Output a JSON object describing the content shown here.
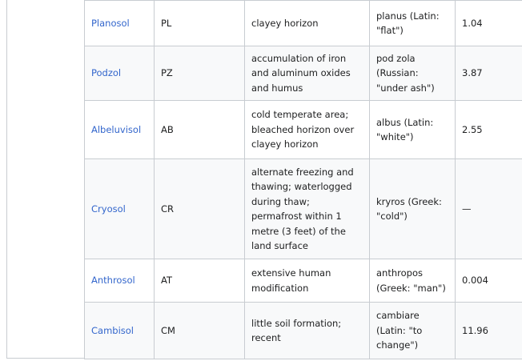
{
  "rows": [
    {
      "name": "Planosol",
      "code": "PL",
      "description": "clayey horizon",
      "etymology": "planus (Latin: \"flat\")",
      "value": "1.04"
    },
    {
      "name": "Podzol",
      "code": "PZ",
      "description": "accumulation of iron and aluminum oxides and humus",
      "etymology": "pod zola (Russian: \"under ash\")",
      "value": "3.87"
    },
    {
      "name": "Albeluvisol",
      "code": "AB",
      "description": "cold temperate area; bleached horizon over clayey horizon",
      "etymology": "albus (Latin: \"white\")",
      "value": "2.55"
    },
    {
      "name": "Cryosol",
      "code": "CR",
      "description": "alternate freezing and thawing; waterlogged during thaw; permafrost within 1 metre (3 feet) of the land surface",
      "etymology": "kryros (Greek: \"cold\")",
      "value": "—"
    },
    {
      "name": "Anthrosol",
      "code": "AT",
      "description": "extensive human modification",
      "etymology": "anthropos (Greek: \"man\")",
      "value": "0.004"
    },
    {
      "name": "Cambisol",
      "code": "CM",
      "description": "little soil formation; recent",
      "etymology": "cambiare (Latin: \"to change\")",
      "value": "11.96"
    }
  ],
  "colors": {
    "link": "#3366cc",
    "border": "#c8ccd1",
    "alt_row": "#f8f9fa",
    "text": "#202122"
  }
}
